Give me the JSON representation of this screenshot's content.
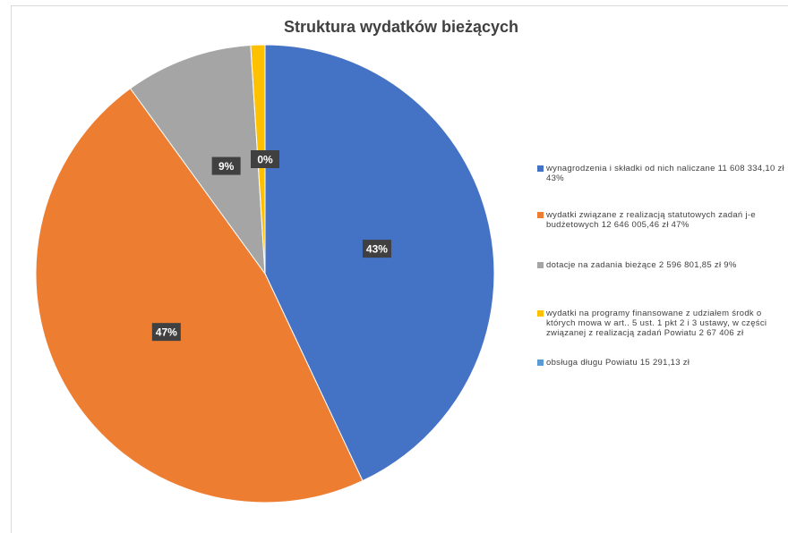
{
  "chart_data": {
    "type": "pie",
    "title": "Struktura wydatków bieżących",
    "categories": [
      "wynagrodzenia i składki od nich naliczane 11 608 334,10 zł 43%",
      "wydatki związane z realizacją statutowych zadań j-e budżetowych 12 646 005,46 zł 47%",
      "dotacje na zadania bieżące 2 596 801,85 zł 9%",
      "wydatki na programy finansowane z udziałem środk o których mowa w art.. 5 ust. 1 pkt 2 i 3 ustawy, w części związanej z realizacją zadań Powiatu 2 67 406 zł",
      "obsługa długu Powiatu 15 291,13 zł"
    ],
    "values": [
      43,
      47,
      9,
      1,
      0
    ],
    "value_labels": [
      "43%",
      "47%",
      "9%",
      null,
      "0%"
    ],
    "colors": [
      "#4472c4",
      "#ed7d31",
      "#a5a5a5",
      "#ffc000",
      "#5b9bd5"
    ],
    "legend": "right"
  }
}
